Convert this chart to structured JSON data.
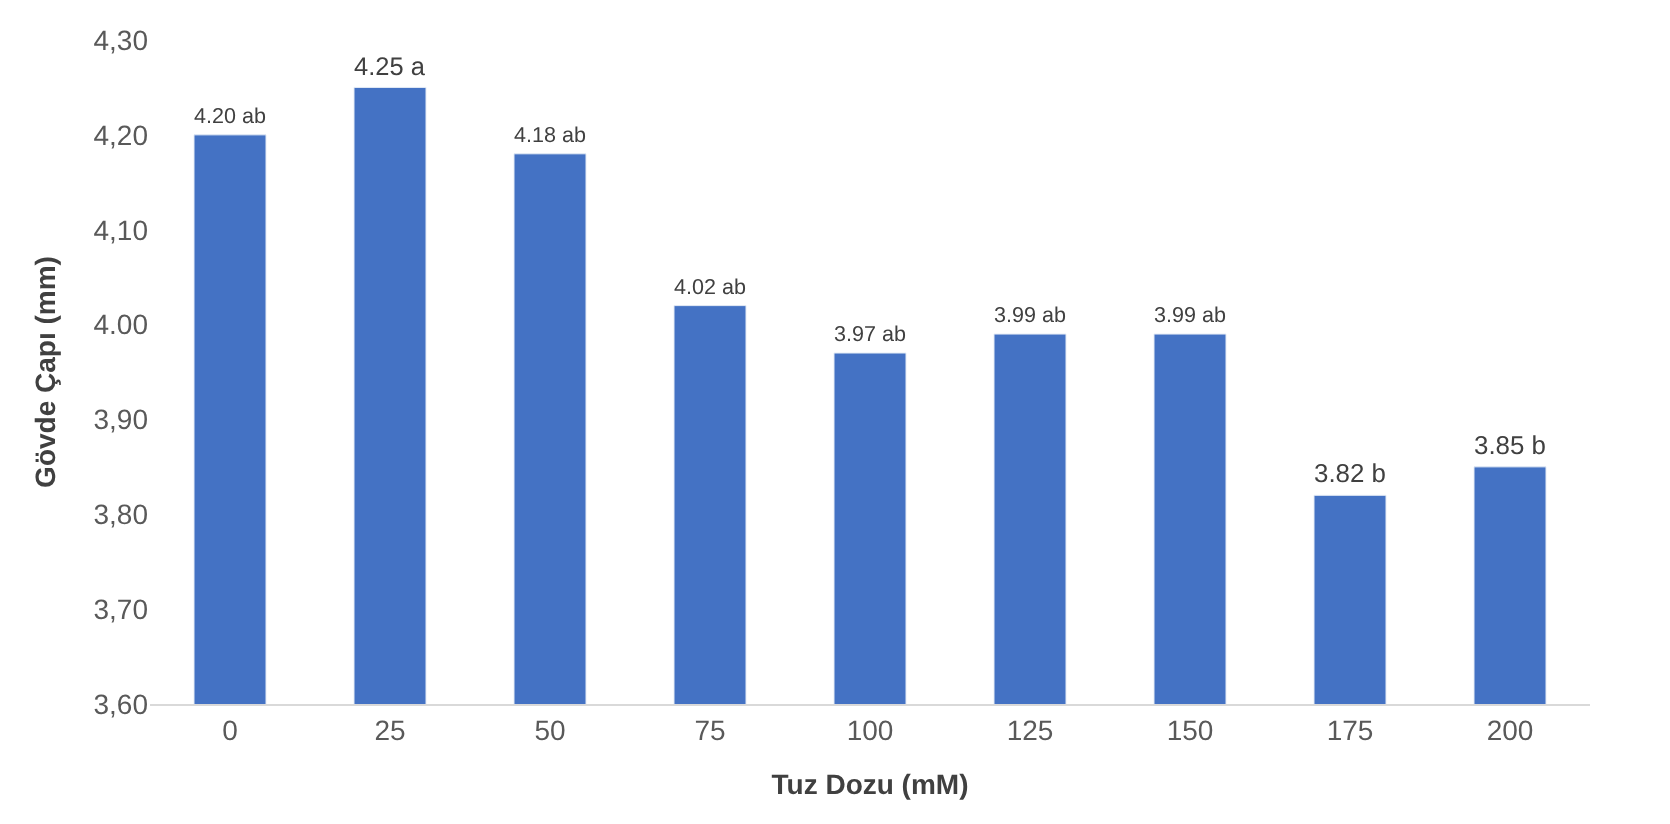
{
  "chart_data": {
    "type": "bar",
    "xlabel": "Tuz Dozu (mM)",
    "ylabel": "Gövde Çapı (mm)",
    "categories": [
      "0",
      "25",
      "50",
      "75",
      "100",
      "125",
      "150",
      "175",
      "200"
    ],
    "values": [
      4.2,
      4.25,
      4.18,
      4.02,
      3.97,
      3.99,
      3.99,
      3.82,
      3.85
    ],
    "value_labels": [
      "4.20 ab",
      "4.25 a",
      "4.18 ab",
      "4.02 ab",
      "3.97 ab",
      "3.99 ab",
      "3.99 ab",
      "3.82 b",
      "3.85 b"
    ],
    "color": "#4472c4",
    "ylim": [
      3.6,
      4.3
    ],
    "yticks": [
      {
        "value": 3.6,
        "label": "3,60"
      },
      {
        "value": 3.7,
        "label": "3,70"
      },
      {
        "value": 3.8,
        "label": "3,80"
      },
      {
        "value": 3.9,
        "label": "3,90"
      },
      {
        "value": 4.0,
        "label": "4.00"
      },
      {
        "value": 4.1,
        "label": "4,10"
      },
      {
        "value": 4.2,
        "label": "4,20"
      },
      {
        "value": 4.3,
        "label": "4,30"
      }
    ],
    "grid": false,
    "legend": false
  }
}
